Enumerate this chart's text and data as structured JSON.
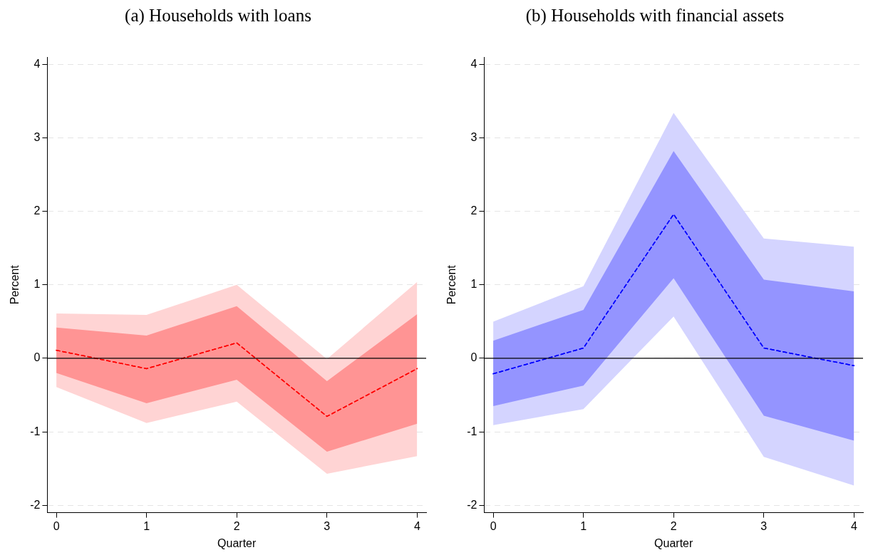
{
  "chart_data": [
    {
      "type": "line",
      "title": "(a) Households with loans",
      "xlabel": "Quarter",
      "ylabel": "Percent",
      "x": [
        0,
        1,
        2,
        3,
        4
      ],
      "xlim": [
        -0.1,
        4.1
      ],
      "xticks": [
        0,
        1,
        2,
        3,
        4
      ],
      "ylim": [
        -2.1,
        4.1
      ],
      "yticks": [
        -2,
        -1,
        0,
        1,
        2,
        3,
        4
      ],
      "grid": "y",
      "legend": false,
      "line_style": "dashed",
      "marker": "none",
      "ref_lines": [
        {
          "axis": "y",
          "value": 0,
          "color": "#000000",
          "line_style": "solid"
        }
      ],
      "series": [
        {
          "color": "#ff0000",
          "values": [
            0.11,
            -0.14,
            0.21,
            -0.79,
            -0.14
          ],
          "lower": [
            -0.39,
            -0.88,
            -0.59,
            -1.57,
            -1.33
          ],
          "upper": [
            0.61,
            0.59,
            1.0,
            -0.01,
            1.04
          ]
        },
        {
          "color": "#ff0000",
          "values": [
            0.11,
            -0.14,
            0.21,
            -0.79,
            -0.14
          ],
          "lower": [
            -0.2,
            -0.61,
            -0.29,
            -1.27,
            -0.89
          ],
          "upper": [
            0.42,
            0.31,
            0.71,
            -0.31,
            0.6
          ]
        }
      ]
    },
    {
      "type": "line",
      "title": "(b) Households with financial assets",
      "xlabel": "Quarter",
      "ylabel": "Percent",
      "x": [
        0,
        1,
        2,
        3,
        4
      ],
      "xlim": [
        -0.1,
        4.1
      ],
      "xticks": [
        0,
        1,
        2,
        3,
        4
      ],
      "ylim": [
        -2.1,
        4.1
      ],
      "yticks": [
        -2,
        -1,
        0,
        1,
        2,
        3,
        4
      ],
      "grid": "y",
      "legend": false,
      "line_style": "dashed",
      "marker": "none",
      "ref_lines": [
        {
          "axis": "y",
          "value": 0,
          "color": "#000000",
          "line_style": "solid"
        }
      ],
      "series": [
        {
          "color": "#0000ff",
          "values": [
            -0.21,
            0.14,
            1.96,
            0.14,
            -0.1
          ],
          "lower": [
            -0.91,
            -0.69,
            0.57,
            -1.34,
            -1.73
          ],
          "upper": [
            0.5,
            0.98,
            3.34,
            1.63,
            1.52
          ]
        },
        {
          "color": "#0000ff",
          "values": [
            -0.21,
            0.14,
            1.96,
            0.14,
            -0.1
          ],
          "lower": [
            -0.65,
            -0.37,
            1.09,
            -0.78,
            -1.12
          ],
          "upper": [
            0.24,
            0.66,
            2.82,
            1.07,
            0.91
          ]
        }
      ]
    }
  ]
}
